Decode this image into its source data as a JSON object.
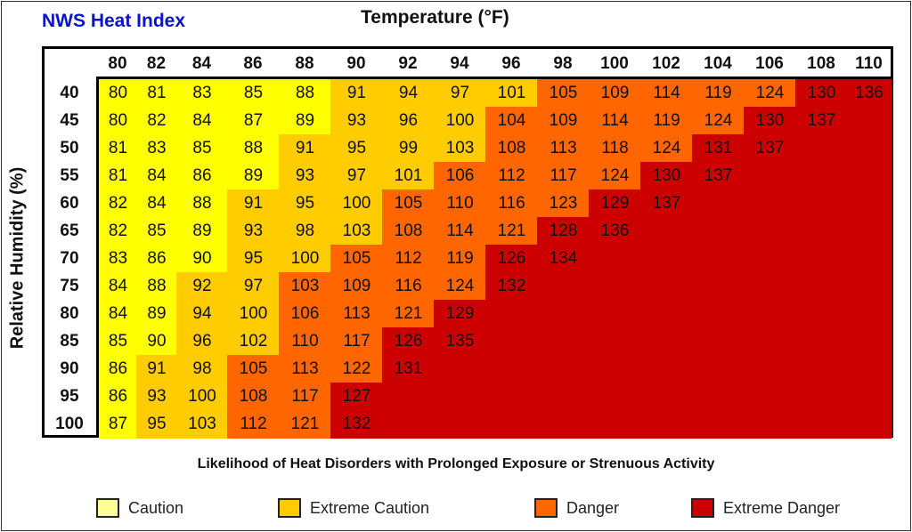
{
  "chart_data": {
    "type": "heatmap",
    "title": "NWS Heat Index",
    "xlabel": "Temperature (°F)",
    "xlabel_main": "Temperature (",
    "xlabel_sup": "o",
    "xlabel_end": "F)",
    "ylabel": "Relative Humidity (%)",
    "subtitle": "Likelihood of Heat Disorders with Prolonged Exposure or Strenuous Activity",
    "x": [
      "80",
      "82",
      "84",
      "86",
      "88",
      "90",
      "92",
      "94",
      "96",
      "98",
      "100",
      "102",
      "104",
      "106",
      "108",
      "110"
    ],
    "y": [
      "40",
      "45",
      "50",
      "55",
      "60",
      "65",
      "70",
      "75",
      "80",
      "85",
      "90",
      "95",
      "100"
    ],
    "values": [
      [
        80,
        81,
        83,
        85,
        88,
        91,
        94,
        97,
        101,
        105,
        109,
        114,
        119,
        124,
        130,
        136
      ],
      [
        80,
        82,
        84,
        87,
        89,
        93,
        96,
        100,
        104,
        109,
        114,
        119,
        124,
        130,
        137,
        null
      ],
      [
        81,
        83,
        85,
        88,
        91,
        95,
        99,
        103,
        108,
        113,
        118,
        124,
        131,
        137,
        null,
        null
      ],
      [
        81,
        84,
        86,
        89,
        93,
        97,
        101,
        106,
        112,
        117,
        124,
        130,
        137,
        null,
        null,
        null
      ],
      [
        82,
        84,
        88,
        91,
        95,
        100,
        105,
        110,
        116,
        123,
        129,
        137,
        null,
        null,
        null,
        null
      ],
      [
        82,
        85,
        89,
        93,
        98,
        103,
        108,
        114,
        121,
        128,
        136,
        null,
        null,
        null,
        null,
        null
      ],
      [
        83,
        86,
        90,
        95,
        100,
        105,
        112,
        119,
        126,
        134,
        null,
        null,
        null,
        null,
        null,
        null
      ],
      [
        84,
        88,
        92,
        97,
        103,
        109,
        116,
        124,
        132,
        null,
        null,
        null,
        null,
        null,
        null,
        null
      ],
      [
        84,
        89,
        94,
        100,
        106,
        113,
        121,
        129,
        null,
        null,
        null,
        null,
        null,
        null,
        null,
        null
      ],
      [
        85,
        90,
        96,
        102,
        110,
        117,
        126,
        135,
        null,
        null,
        null,
        null,
        null,
        null,
        null,
        null
      ],
      [
        86,
        91,
        98,
        105,
        113,
        122,
        131,
        null,
        null,
        null,
        null,
        null,
        null,
        null,
        null,
        null
      ],
      [
        86,
        93,
        100,
        108,
        117,
        127,
        null,
        null,
        null,
        null,
        null,
        null,
        null,
        null,
        null,
        null
      ],
      [
        87,
        95,
        103,
        112,
        121,
        132,
        null,
        null,
        null,
        null,
        null,
        null,
        null,
        null,
        null,
        null
      ]
    ],
    "category_grid": [
      "0000011112222233",
      "0000011122222333",
      "0000111122223333",
      "0000111222233333",
      "0001112222333333",
      "0001112223333333",
      "0001122233333333",
      "0011222233333333",
      "0011222333333333",
      "0011223333333333",
      "0112223333333333",
      "0112233333333333",
      "0112233333333333"
    ],
    "legend": [
      {
        "label": "Caution",
        "color": "#ffff00",
        "swatch": "#ffff99"
      },
      {
        "label": "Extreme Caution",
        "color": "#ffcc00",
        "swatch": "#ffcc00"
      },
      {
        "label": "Danger",
        "color": "#ff6600",
        "swatch": "#ff6600"
      },
      {
        "label": "Extreme Danger",
        "color": "#cc0000",
        "swatch": "#cc0000"
      }
    ],
    "legend_placement": "bottom"
  }
}
